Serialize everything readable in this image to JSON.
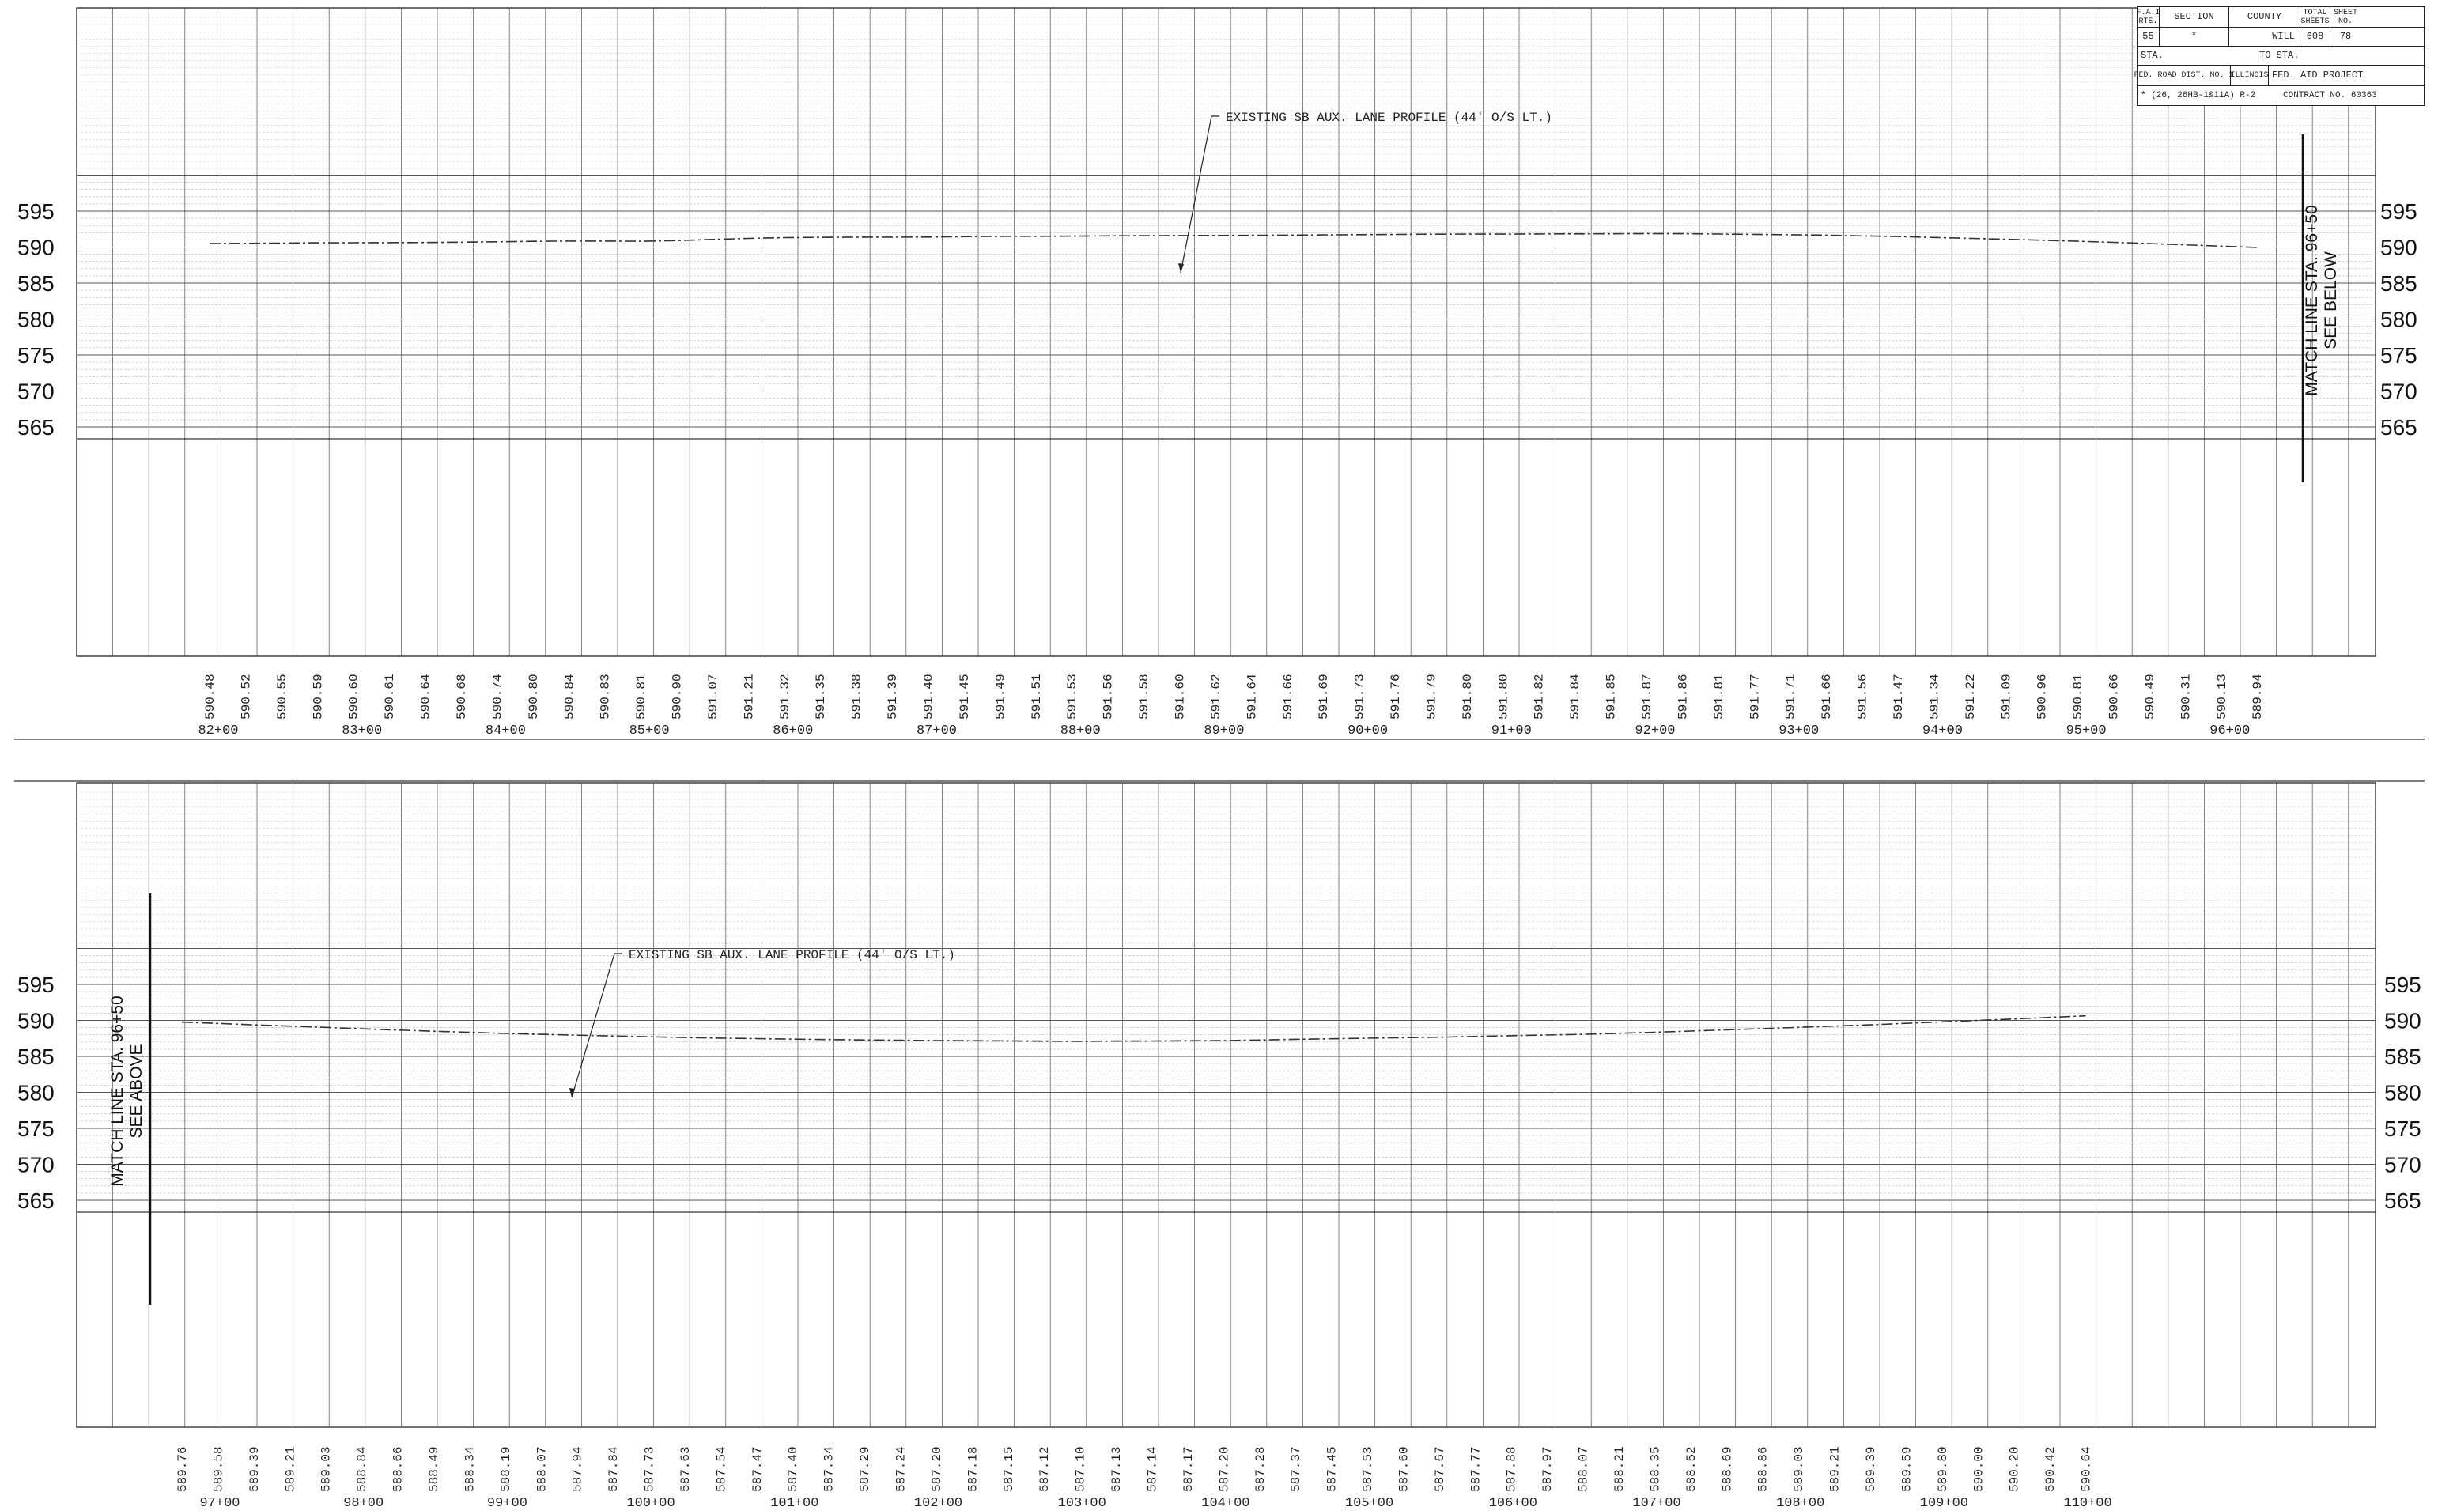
{
  "title_block": {
    "fai_rte_label": "F.A.I RTE.",
    "section_label": "SECTION",
    "county_label": "COUNTY",
    "total_sheets_label": "TOTAL SHEETS",
    "sheet_no_label": "SHEET NO.",
    "fai_rte": "55",
    "section": "*",
    "county": "WILL",
    "total_sheets": "608",
    "sheet_no": "78",
    "sta_label": "STA.",
    "to_sta_label": "TO STA.",
    "fed_road_dist": "FED. ROAD DIST. NO. 1",
    "state": "ILLINOIS",
    "fed_aid_project": "FED. AID PROJECT",
    "section_note": "* (26, 26HB-1&11A) R-2",
    "contract_no": "CONTRACT NO. 60363"
  },
  "panels": [
    {
      "name": "upper-profile",
      "y_ticks": [
        "595",
        "590",
        "585",
        "580",
        "575",
        "570",
        "565"
      ],
      "profile_label": "EXISTING SB AUX. LANE PROFILE (44' O/S LT.)",
      "match_line": [
        "MATCH LINE STA. 96+50",
        "SEE BELOW"
      ],
      "station_labels": [
        "82+00",
        "83+00",
        "84+00",
        "85+00",
        "86+00",
        "87+00",
        "88+00",
        "89+00",
        "90+00",
        "91+00",
        "92+00",
        "93+00",
        "94+00",
        "95+00",
        "96+00"
      ],
      "elevations": [
        "590.48",
        "590.52",
        "590.55",
        "590.59",
        "590.60",
        "590.61",
        "590.64",
        "590.68",
        "590.74",
        "590.80",
        "590.84",
        "590.83",
        "590.81",
        "590.90",
        "591.07",
        "591.21",
        "591.32",
        "591.35",
        "591.38",
        "591.39",
        "591.40",
        "591.45",
        "591.49",
        "591.51",
        "591.53",
        "591.56",
        "591.58",
        "591.60",
        "591.62",
        "591.64",
        "591.66",
        "591.69",
        "591.73",
        "591.76",
        "591.79",
        "591.80",
        "591.80",
        "591.82",
        "591.84",
        "591.85",
        "591.87",
        "591.86",
        "591.81",
        "591.77",
        "591.71",
        "591.66",
        "591.56",
        "591.47",
        "591.34",
        "591.22",
        "591.09",
        "590.96",
        "590.81",
        "590.66",
        "590.49",
        "590.31",
        "590.13",
        "589.94"
      ]
    },
    {
      "name": "lower-profile",
      "y_ticks": [
        "595",
        "590",
        "585",
        "580",
        "575",
        "570",
        "565"
      ],
      "profile_label": "EXISTING SB AUX. LANE PROFILE (44' O/S LT.)",
      "match_line": [
        "MATCH LINE STA. 96+50",
        "SEE ABOVE"
      ],
      "station_labels": [
        "97+00",
        "98+00",
        "99+00",
        "100+00",
        "101+00",
        "102+00",
        "103+00",
        "104+00",
        "105+00",
        "106+00",
        "107+00",
        "108+00",
        "109+00",
        "110+00"
      ],
      "elevations": [
        "589.76",
        "589.58",
        "589.39",
        "589.21",
        "589.03",
        "588.84",
        "588.66",
        "588.49",
        "588.34",
        "588.19",
        "588.07",
        "587.94",
        "587.84",
        "587.73",
        "587.63",
        "587.54",
        "587.47",
        "587.40",
        "587.34",
        "587.29",
        "587.24",
        "587.20",
        "587.18",
        "587.15",
        "587.12",
        "587.10",
        "587.13",
        "587.14",
        "587.17",
        "587.20",
        "587.28",
        "587.37",
        "587.45",
        "587.53",
        "587.60",
        "587.67",
        "587.77",
        "587.88",
        "587.97",
        "588.07",
        "588.21",
        "588.35",
        "588.52",
        "588.69",
        "588.86",
        "589.03",
        "589.21",
        "589.39",
        "589.59",
        "589.80",
        "590.00",
        "590.20",
        "590.42",
        "590.64"
      ]
    }
  ]
}
